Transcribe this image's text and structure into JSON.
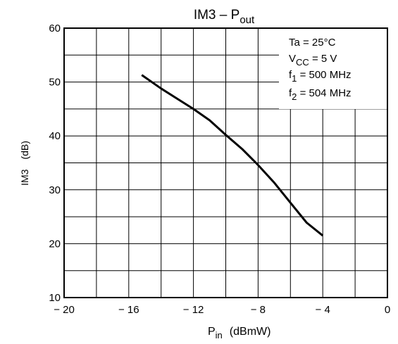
{
  "chart_data": {
    "type": "line",
    "title": "IM3 – P",
    "title_sub": "out",
    "xlabel": "P",
    "xlabel_sub": "in",
    "xunit": "(dBmW)",
    "ylabel": "IM3",
    "yunit": "(dB)",
    "xlim": [
      -20,
      0
    ],
    "ylim": [
      10,
      60
    ],
    "grid": true,
    "x_ticks": [
      -20,
      -16,
      -12,
      -8,
      -4,
      0
    ],
    "x_tick_labels": [
      "− 20",
      "− 16",
      "− 12",
      "− 8",
      "− 4",
      "0"
    ],
    "y_ticks": [
      10,
      20,
      30,
      40,
      50,
      60
    ],
    "y_tick_labels": [
      "10",
      "20",
      "30",
      "40",
      "50",
      "60"
    ],
    "series": [
      {
        "x": [
          -15.2,
          -14,
          -12,
          -11,
          -10,
          -9,
          -8,
          -7,
          -6,
          -5,
          -4
        ],
        "y": [
          51.3,
          48.8,
          45.0,
          42.9,
          40.2,
          37.6,
          34.6,
          31.3,
          27.6,
          23.9,
          21.5
        ],
        "color": "#000000"
      }
    ],
    "annotation": [
      {
        "main": "Ta  =  25°C",
        "sub": "",
        "rest": ""
      },
      {
        "main": "V",
        "sub": "CC",
        "rest": "  =  5 V"
      },
      {
        "main": "f",
        "sub": "1",
        "rest": "  =  500 MHz"
      },
      {
        "main": "f",
        "sub": "2",
        "rest": "  =  504 MHz"
      }
    ]
  }
}
